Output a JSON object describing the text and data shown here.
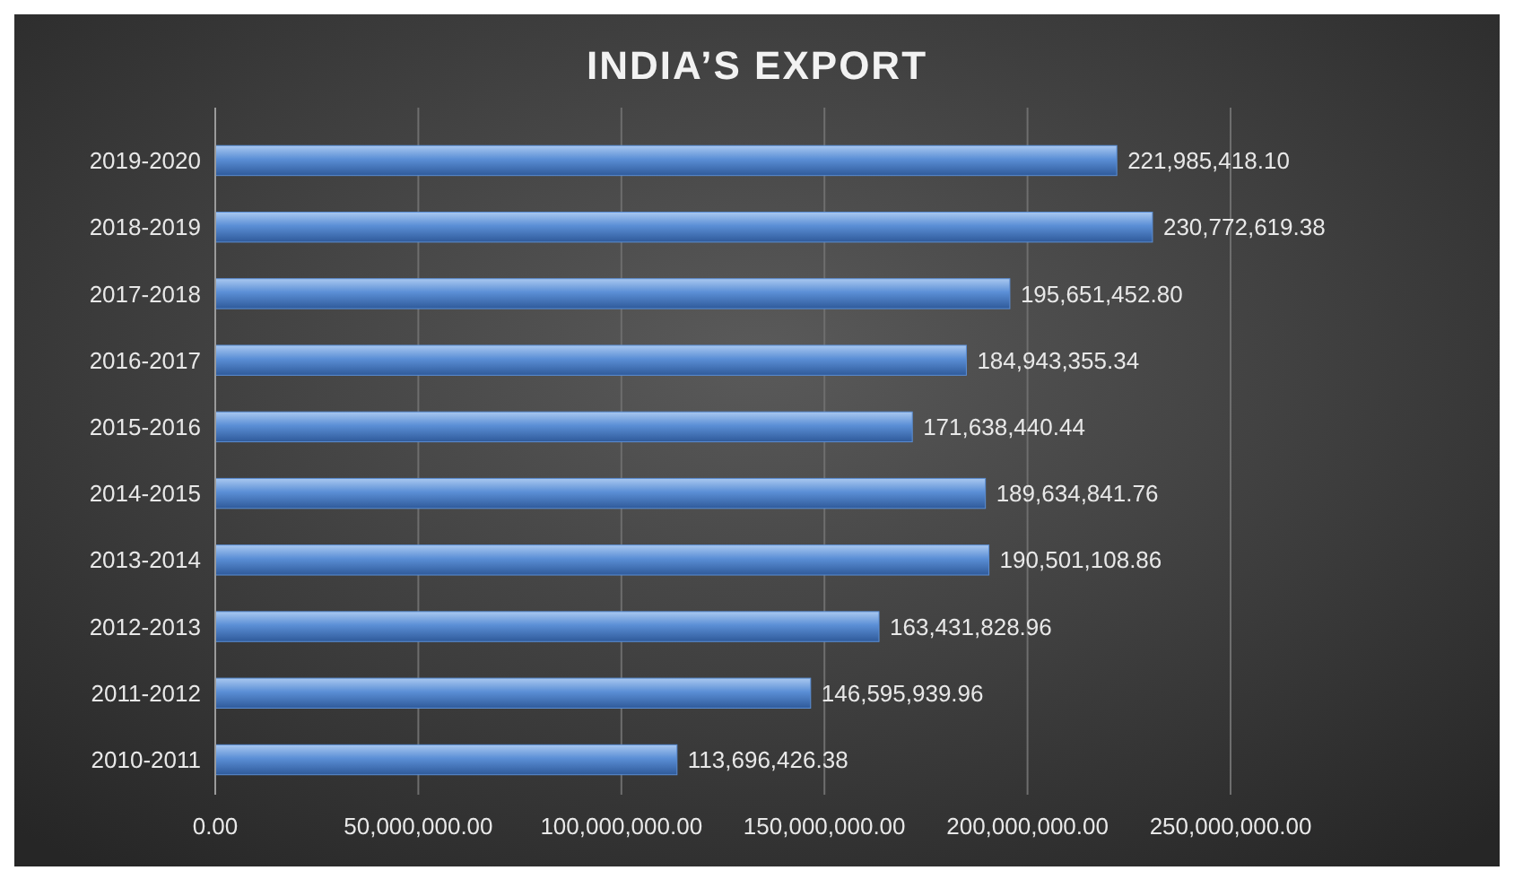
{
  "chart_data": {
    "type": "bar",
    "orientation": "horizontal",
    "title": "INDIA’S EXPORT",
    "categories": [
      "2019-2020",
      "2018-2019",
      "2017-2018",
      "2016-2017",
      "2015-2016",
      "2014-2015",
      "2013-2014",
      "2012-2013",
      "2011-2012",
      "2010-2011"
    ],
    "values": [
      221985418.1,
      230772619.38,
      195651452.8,
      184943355.34,
      171638440.44,
      189634841.76,
      190501108.86,
      163431828.96,
      146595939.96,
      113696426.38
    ],
    "value_labels": [
      "221,985,418.10",
      "230,772,619.38",
      "195,651,452.80",
      "184,943,355.34",
      "171,638,440.44",
      "189,634,841.76",
      "190,501,108.86",
      "163,431,828.96",
      "146,595,939.96",
      "113,696,426.38"
    ],
    "color": "#5b8fd6",
    "xlim": [
      0,
      250000000
    ],
    "xticks": [
      {
        "value": 0,
        "label": "0.00"
      },
      {
        "value": 50000000,
        "label": "50,000,000.00"
      },
      {
        "value": 100000000,
        "label": "100,000,000.00"
      },
      {
        "value": 150000000,
        "label": "150,000,000.00"
      },
      {
        "value": 200000000,
        "label": "200,000,000.00"
      },
      {
        "value": 250000000,
        "label": "250,000,000.00"
      }
    ],
    "grid": "x"
  }
}
